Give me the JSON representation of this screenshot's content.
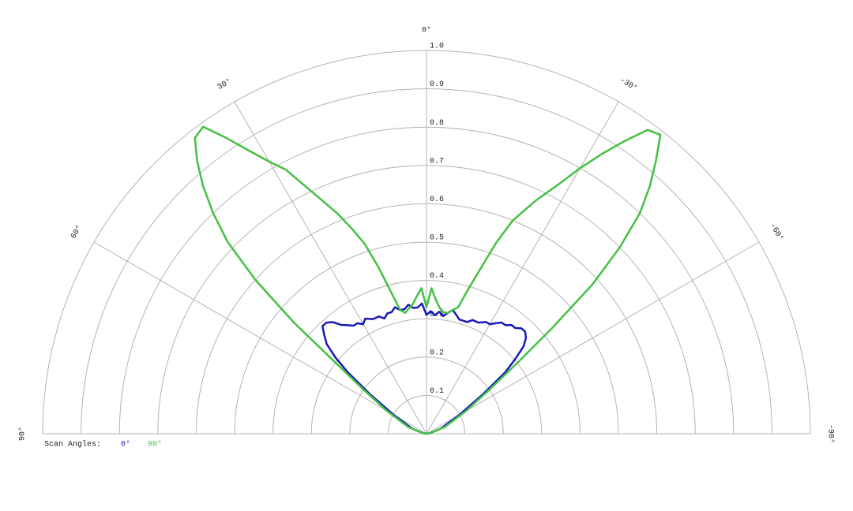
{
  "chart_data": {
    "type": "polar",
    "legend_title": "Scan Angles:",
    "theta": [
      90,
      80,
      70,
      60,
      55,
      52,
      50,
      48,
      46,
      44,
      42,
      40,
      38,
      36,
      34,
      32,
      30,
      28,
      25,
      22,
      20,
      18,
      16,
      14,
      12,
      10,
      8,
      6,
      4,
      2,
      0,
      -2,
      -4,
      -6,
      -8,
      -10,
      -12,
      -14,
      -16,
      -18,
      -20,
      -22,
      -25,
      -28,
      -30,
      -32,
      -34,
      -36,
      -38,
      -40,
      -42,
      -44,
      -46,
      -48,
      -50,
      -52,
      -55,
      -60,
      -70,
      -80,
      -90
    ],
    "series": [
      {
        "name": "0°",
        "color": "#1a1ab8",
        "values": [
          0,
          0.01,
          0.04,
          0.1,
          0.18,
          0.26,
          0.31,
          0.35,
          0.37,
          0.39,
          0.39,
          0.38,
          0.36,
          0.35,
          0.34,
          0.34,
          0.33,
          0.34,
          0.33,
          0.33,
          0.32,
          0.33,
          0.33,
          0.34,
          0.33,
          0.33,
          0.34,
          0.33,
          0.33,
          0.34,
          0.31,
          0.32,
          0.31,
          0.32,
          0.31,
          0.32,
          0.33,
          0.32,
          0.31,
          0.31,
          0.31,
          0.32,
          0.32,
          0.33,
          0.33,
          0.34,
          0.35,
          0.35,
          0.36,
          0.36,
          0.37,
          0.37,
          0.36,
          0.34,
          0.3,
          0.26,
          0.18,
          0.1,
          0.04,
          0.01,
          0
        ]
      },
      {
        "name": "90°",
        "color": "#44c144",
        "values": [
          0,
          0.01,
          0.05,
          0.12,
          0.2,
          0.3,
          0.45,
          0.6,
          0.72,
          0.8,
          0.87,
          0.93,
          0.98,
          0.99,
          0.93,
          0.87,
          0.82,
          0.78,
          0.69,
          0.62,
          0.57,
          0.52,
          0.45,
          0.38,
          0.33,
          0.32,
          0.33,
          0.34,
          0.36,
          0.38,
          0.33,
          0.38,
          0.35,
          0.33,
          0.32,
          0.32,
          0.33,
          0.34,
          0.39,
          0.45,
          0.53,
          0.6,
          0.67,
          0.74,
          0.8,
          0.86,
          0.92,
          0.98,
          0.99,
          0.93,
          0.87,
          0.8,
          0.7,
          0.58,
          0.42,
          0.3,
          0.2,
          0.12,
          0.05,
          0.01,
          0
        ]
      }
    ],
    "rlim": [
      0,
      1
    ],
    "rticks": [
      0.1,
      0.2,
      0.3,
      0.4,
      0.5,
      0.6,
      0.7,
      0.8,
      0.9,
      {
        "value": 1,
        "label": "1.0"
      }
    ],
    "thetaticks": [
      {
        "value": 90,
        "label": "90°"
      },
      {
        "value": 60,
        "label": "60°"
      },
      {
        "value": 30,
        "label": "30°"
      },
      {
        "value": 0,
        "label": "0°"
      },
      {
        "value": -30,
        "label": "-30°"
      },
      {
        "value": -60,
        "label": "-60°"
      },
      {
        "value": -90,
        "label": "-90°"
      }
    ],
    "grid": true
  }
}
